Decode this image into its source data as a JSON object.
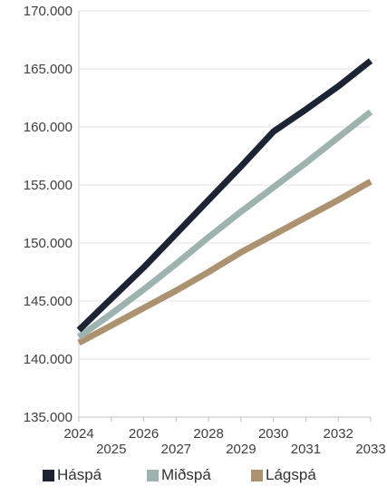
{
  "chart_data": {
    "type": "line",
    "title": "",
    "xlabel": "",
    "ylabel": "",
    "x": [
      2024,
      2025,
      2026,
      2027,
      2028,
      2029,
      2030,
      2031,
      2032,
      2033
    ],
    "x_tick_labels": [
      "2024",
      "2025",
      "2026",
      "2027",
      "2028",
      "2029",
      "2030",
      "2031",
      "2032",
      "2033"
    ],
    "ylim": [
      135000,
      170000
    ],
    "y_ticks": [
      135000,
      140000,
      145000,
      150000,
      155000,
      160000,
      165000,
      170000
    ],
    "y_tick_labels": [
      "135.000",
      "140.000",
      "145.000",
      "150.000",
      "155.000",
      "160.000",
      "165.000",
      "170.000"
    ],
    "grid": "horizontal",
    "legend_position": "bottom",
    "series": [
      {
        "name": "Háspá",
        "color": "#1c2333",
        "values": [
          142500,
          145200,
          147900,
          150800,
          153700,
          156600,
          159600,
          161500,
          163500,
          165700
        ]
      },
      {
        "name": "Miðspá",
        "color": "#9eb3b0",
        "values": [
          141900,
          143900,
          146000,
          148200,
          150500,
          152700,
          154800,
          156900,
          159100,
          161300
        ]
      },
      {
        "name": "Lágspá",
        "color": "#ad9271",
        "values": [
          141400,
          142900,
          144400,
          145900,
          147500,
          149200,
          150700,
          152200,
          153700,
          155300
        ]
      }
    ]
  }
}
